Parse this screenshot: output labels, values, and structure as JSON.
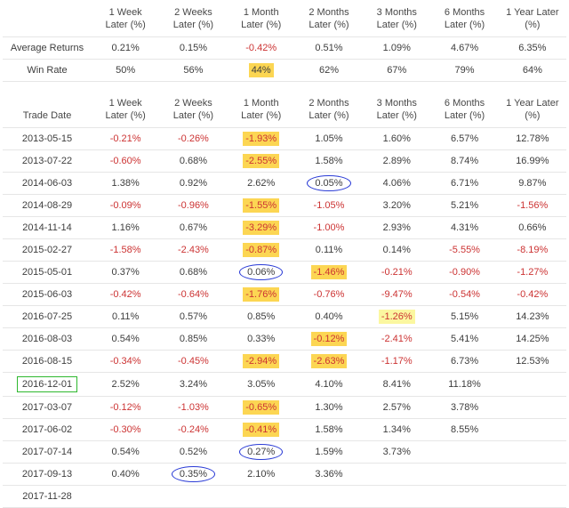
{
  "colors": {
    "negative_text": "#cc3333",
    "positive_text": "#3d3d3d",
    "header_text": "#474747",
    "highlight_yellow": "#fcd653",
    "highlight_light_yellow": "#fbf7a0",
    "circle_blue": "#2a3bd6",
    "green_box": "#2eb82e",
    "row_divider": "#e6e6e6"
  },
  "chart_data": [
    {
      "type": "table",
      "name": "summary",
      "columns": [
        "",
        "1 Week Later (%)",
        "2 Weeks Later (%)",
        "1 Month Later (%)",
        "2 Months Later (%)",
        "3 Months Later (%)",
        "6 Months Later (%)",
        "1 Year Later (%)"
      ],
      "rows": [
        [
          "Average Returns",
          "0.21%",
          "0.15%",
          "-0.42%",
          "0.51%",
          "1.09%",
          "4.67%",
          "6.35%"
        ],
        [
          "Win Rate",
          "50%",
          "56%",
          "44%",
          "62%",
          "67%",
          "79%",
          "64%"
        ]
      ]
    },
    {
      "type": "table",
      "name": "returns",
      "columns": [
        "Trade Date",
        "1 Week Later (%)",
        "2 Weeks Later (%)",
        "1 Month Later (%)",
        "2 Months Later (%)",
        "3 Months Later (%)",
        "6 Months Later (%)",
        "1 Year Later (%)"
      ],
      "rows": [
        [
          "2013-05-15",
          "-0.21%",
          "-0.26%",
          "-1.93%",
          "1.05%",
          "1.60%",
          "6.57%",
          "12.78%"
        ],
        [
          "2013-07-22",
          "-0.60%",
          "0.68%",
          "-2.55%",
          "1.58%",
          "2.89%",
          "8.74%",
          "16.99%"
        ],
        [
          "2014-06-03",
          "1.38%",
          "0.92%",
          "2.62%",
          "0.05%",
          "4.06%",
          "6.71%",
          "9.87%"
        ],
        [
          "2014-08-29",
          "-0.09%",
          "-0.96%",
          "-1.55%",
          "-1.05%",
          "3.20%",
          "5.21%",
          "-1.56%"
        ],
        [
          "2014-11-14",
          "1.16%",
          "0.67%",
          "-3.29%",
          "-1.00%",
          "2.93%",
          "4.31%",
          "0.66%"
        ],
        [
          "2015-02-27",
          "-1.58%",
          "-2.43%",
          "-0.87%",
          "0.11%",
          "0.14%",
          "-5.55%",
          "-8.19%"
        ],
        [
          "2015-05-01",
          "0.37%",
          "0.68%",
          "0.06%",
          "-1.46%",
          "-0.21%",
          "-0.90%",
          "-1.27%"
        ],
        [
          "2015-06-03",
          "-0.42%",
          "-0.64%",
          "-1.76%",
          "-0.76%",
          "-9.47%",
          "-0.54%",
          "-0.42%"
        ],
        [
          "2016-07-25",
          "0.11%",
          "0.57%",
          "0.85%",
          "0.40%",
          "-1.26%",
          "5.15%",
          "14.23%"
        ],
        [
          "2016-08-03",
          "0.54%",
          "0.85%",
          "0.33%",
          "-0.12%",
          "-2.41%",
          "5.41%",
          "14.25%"
        ],
        [
          "2016-08-15",
          "-0.34%",
          "-0.45%",
          "-2.94%",
          "-2.63%",
          "-1.17%",
          "6.73%",
          "12.53%"
        ],
        [
          "2016-12-01",
          "2.52%",
          "3.24%",
          "3.05%",
          "4.10%",
          "8.41%",
          "11.18%",
          ""
        ],
        [
          "2017-03-07",
          "-0.12%",
          "-1.03%",
          "-0.65%",
          "1.30%",
          "2.57%",
          "3.78%",
          ""
        ],
        [
          "2017-06-02",
          "-0.30%",
          "-0.24%",
          "-0.41%",
          "1.58%",
          "1.34%",
          "8.55%",
          ""
        ],
        [
          "2017-07-14",
          "0.54%",
          "0.52%",
          "0.27%",
          "1.59%",
          "3.73%",
          "",
          ""
        ],
        [
          "2017-09-13",
          "0.40%",
          "0.35%",
          "2.10%",
          "3.36%",
          "",
          "",
          ""
        ],
        [
          "2017-11-28",
          "",
          "",
          "",
          "",
          "",
          "",
          ""
        ]
      ]
    }
  ],
  "annotations": {
    "yellow_highlight_cells": [
      [
        0,
        1,
        3
      ],
      [
        1,
        0,
        3
      ],
      [
        1,
        1,
        3
      ],
      [
        1,
        3,
        3
      ],
      [
        1,
        4,
        3
      ],
      [
        1,
        5,
        3
      ],
      [
        1,
        6,
        4
      ],
      [
        1,
        7,
        3
      ],
      [
        1,
        9,
        4
      ],
      [
        1,
        10,
        3
      ],
      [
        1,
        10,
        4
      ],
      [
        1,
        12,
        3
      ],
      [
        1,
        13,
        3
      ]
    ],
    "light_yellow_highlight_cells": [
      [
        1,
        8,
        5
      ]
    ],
    "blue_circle_cells": [
      [
        1,
        2,
        4
      ],
      [
        1,
        6,
        3
      ],
      [
        1,
        14,
        3
      ],
      [
        1,
        15,
        2
      ]
    ],
    "green_box_cells": [
      [
        1,
        11,
        0
      ]
    ]
  }
}
